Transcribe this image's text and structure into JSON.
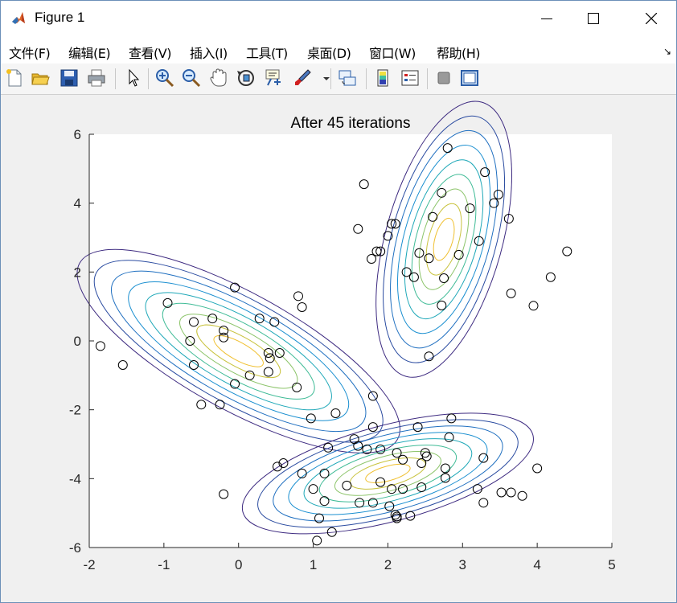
{
  "window": {
    "title": "Figure 1",
    "minimize_icon": "minimize-icon",
    "maximize_icon": "maximize-icon",
    "close_icon": "close-icon"
  },
  "menu": [
    {
      "label": "文件(F)"
    },
    {
      "label": "编辑(E)"
    },
    {
      "label": "查看(V)"
    },
    {
      "label": "插入(I)"
    },
    {
      "label": "工具(T)"
    },
    {
      "label": "桌面(D)"
    },
    {
      "label": "窗口(W)"
    },
    {
      "label": "帮助(H)"
    }
  ],
  "toolbar": [
    {
      "icon": "new-figure-icon"
    },
    {
      "icon": "open-file-icon"
    },
    {
      "icon": "save-icon"
    },
    {
      "icon": "print-icon"
    },
    {
      "icon": "edit-plot-arrow-icon"
    },
    {
      "icon": "zoom-in-icon"
    },
    {
      "icon": "zoom-out-icon"
    },
    {
      "icon": "pan-hand-icon"
    },
    {
      "icon": "rotate-3d-icon"
    },
    {
      "icon": "data-cursor-icon"
    },
    {
      "icon": "brush-icon"
    },
    {
      "icon": "link-plot-icon"
    },
    {
      "icon": "colorbar-icon"
    },
    {
      "icon": "legend-icon"
    },
    {
      "icon": "hide-plot-tools-icon"
    },
    {
      "icon": "show-plot-tools-icon"
    }
  ],
  "chart_data": {
    "type": "scatter",
    "title": "After 45 iterations",
    "xlabel": "",
    "ylabel": "",
    "xlim": [
      -2,
      5
    ],
    "ylim": [
      -6,
      6
    ],
    "xticks": [
      -2,
      -1,
      0,
      1,
      2,
      3,
      4,
      5
    ],
    "yticks": [
      -6,
      -4,
      -2,
      0,
      2,
      4,
      6
    ],
    "grid": false,
    "marker": "open-circle",
    "marker_color": "#000000",
    "contour_colors": [
      "#3d2a80",
      "#2a4ba0",
      "#1f6fc0",
      "#1a8fd0",
      "#1fa8b8",
      "#3fbb96",
      "#8cc46a",
      "#c8c23c",
      "#f0c030"
    ],
    "components": [
      {
        "mean": [
          0.0,
          -0.3
        ],
        "sigma": [
          [
            0.8,
            -0.2
          ],
          [
            -0.2,
            0.55
          ]
        ],
        "levels": 9
      },
      {
        "mean": [
          2.75,
          2.95
        ],
        "sigma": [
          [
            0.45,
            0.03
          ],
          [
            0.03,
            0.55
          ]
        ],
        "levels": 9
      },
      {
        "mean": [
          2.0,
          -3.85
        ],
        "sigma": [
          [
            0.6,
            0.08
          ],
          [
            0.08,
            0.32
          ]
        ],
        "levels": 9
      }
    ],
    "points": [
      [
        -1.85,
        -0.15
      ],
      [
        -1.55,
        -0.7
      ],
      [
        -0.95,
        1.1
      ],
      [
        -0.6,
        0.55
      ],
      [
        -0.65,
        0.0
      ],
      [
        -0.6,
        -0.7
      ],
      [
        -0.35,
        0.65
      ],
      [
        -0.2,
        0.3
      ],
      [
        -0.2,
        0.1
      ],
      [
        -0.05,
        1.55
      ],
      [
        0.28,
        0.65
      ],
      [
        0.48,
        0.55
      ],
      [
        0.4,
        -0.35
      ],
      [
        0.42,
        -0.5
      ],
      [
        0.55,
        -0.35
      ],
      [
        0.4,
        -0.9
      ],
      [
        0.15,
        -1.0
      ],
      [
        -0.05,
        -1.25
      ],
      [
        0.8,
        1.3
      ],
      [
        0.85,
        0.98
      ],
      [
        0.78,
        -1.35
      ],
      [
        -0.5,
        -1.85
      ],
      [
        -0.25,
        -1.85
      ],
      [
        0.97,
        -2.25
      ],
      [
        1.3,
        -2.1
      ],
      [
        -0.2,
        -4.45
      ],
      [
        1.68,
        4.55
      ],
      [
        1.6,
        3.25
      ],
      [
        1.78,
        2.38
      ],
      [
        1.85,
        2.6
      ],
      [
        1.9,
        2.6
      ],
      [
        2.0,
        3.05
      ],
      [
        2.05,
        3.4
      ],
      [
        2.1,
        3.4
      ],
      [
        2.25,
        2.0
      ],
      [
        2.35,
        1.85
      ],
      [
        2.42,
        2.55
      ],
      [
        2.55,
        2.4
      ],
      [
        2.6,
        3.6
      ],
      [
        2.72,
        4.3
      ],
      [
        2.75,
        1.82
      ],
      [
        2.72,
        1.03
      ],
      [
        2.8,
        5.6
      ],
      [
        2.95,
        2.5
      ],
      [
        3.1,
        3.85
      ],
      [
        3.22,
        2.9
      ],
      [
        3.3,
        4.9
      ],
      [
        3.42,
        4.0
      ],
      [
        3.48,
        4.25
      ],
      [
        3.62,
        3.55
      ],
      [
        3.65,
        1.38
      ],
      [
        3.95,
        1.02
      ],
      [
        4.18,
        1.85
      ],
      [
        4.4,
        2.6
      ],
      [
        2.55,
        -0.45
      ],
      [
        1.8,
        -1.6
      ],
      [
        2.85,
        -2.25
      ],
      [
        1.8,
        -2.5
      ],
      [
        2.4,
        -2.5
      ],
      [
        2.82,
        -2.8
      ],
      [
        1.2,
        -3.1
      ],
      [
        1.55,
        -2.85
      ],
      [
        1.6,
        -3.05
      ],
      [
        1.72,
        -3.15
      ],
      [
        1.9,
        -3.15
      ],
      [
        2.12,
        -3.25
      ],
      [
        2.2,
        -3.45
      ],
      [
        2.5,
        -3.25
      ],
      [
        2.52,
        -3.35
      ],
      [
        2.45,
        -3.55
      ],
      [
        3.28,
        -3.4
      ],
      [
        0.52,
        -3.65
      ],
      [
        0.6,
        -3.55
      ],
      [
        0.85,
        -3.85
      ],
      [
        1.15,
        -3.85
      ],
      [
        2.77,
        -3.7
      ],
      [
        2.77,
        -3.98
      ],
      [
        4.0,
        -3.7
      ],
      [
        1.0,
        -4.3
      ],
      [
        1.45,
        -4.2
      ],
      [
        1.9,
        -4.1
      ],
      [
        2.05,
        -4.3
      ],
      [
        2.2,
        -4.3
      ],
      [
        2.45,
        -4.25
      ],
      [
        1.15,
        -4.65
      ],
      [
        1.62,
        -4.7
      ],
      [
        1.8,
        -4.7
      ],
      [
        2.02,
        -4.8
      ],
      [
        3.2,
        -4.3
      ],
      [
        3.28,
        -4.7
      ],
      [
        3.52,
        -4.4
      ],
      [
        3.65,
        -4.4
      ],
      [
        3.8,
        -4.5
      ],
      [
        2.1,
        -5.05
      ],
      [
        2.12,
        -5.1
      ],
      [
        2.12,
        -5.15
      ],
      [
        2.3,
        -5.08
      ],
      [
        1.08,
        -5.15
      ],
      [
        1.25,
        -5.55
      ],
      [
        1.05,
        -5.8
      ]
    ]
  }
}
